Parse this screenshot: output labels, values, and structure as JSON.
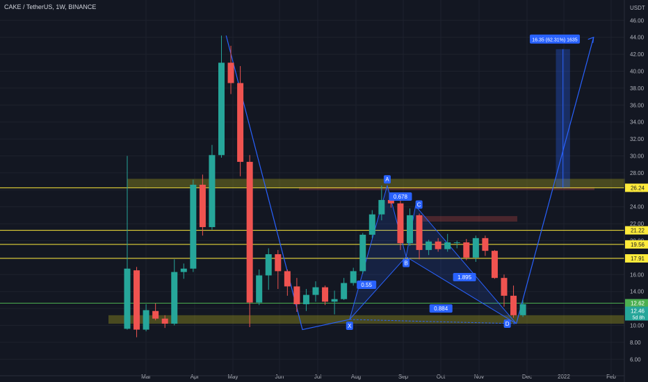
{
  "header": {
    "symbol": "CAKE / TetherUS",
    "interval": "1W",
    "exchange": "BINANCE",
    "currency": "USDT"
  },
  "colors": {
    "background": "#131722",
    "grid": "#1e222d",
    "up": "#26a69a",
    "down": "#ef5350",
    "pattern": "#2962ff",
    "level_line": "#ffeb3b",
    "support_line": "#4caf50",
    "zone": "#8b8a1f"
  },
  "chart_data": {
    "type": "candlestick",
    "title": "CAKE / TetherUS, 1W, BINANCE",
    "ylabel": "USDT",
    "ylim": [
      5,
      48
    ],
    "x_tick_labels": [
      "Mar",
      "Apr",
      "May",
      "Jun",
      "Jul",
      "Aug",
      "Sep",
      "Oct",
      "Nov",
      "Dec",
      "2022",
      "Feb"
    ],
    "y_tick_labels": [
      "6.00",
      "8.00",
      "10.00",
      "12.00",
      "14.00",
      "16.00",
      "18.00",
      "20.00",
      "22.00",
      "24.00",
      "26.00",
      "28.00",
      "30.00",
      "32.00",
      "34.00",
      "36.00",
      "38.00",
      "40.00",
      "42.00",
      "44.00",
      "46.00"
    ],
    "candles": [
      {
        "o": 9.6,
        "h": 30.0,
        "l": 9.5,
        "c": 16.7
      },
      {
        "o": 16.5,
        "h": 16.9,
        "l": 8.6,
        "c": 9.5
      },
      {
        "o": 9.5,
        "h": 12.5,
        "l": 9.3,
        "c": 11.8
      },
      {
        "o": 11.7,
        "h": 12.6,
        "l": 10.6,
        "c": 10.8
      },
      {
        "o": 10.8,
        "h": 11.2,
        "l": 9.7,
        "c": 10.2
      },
      {
        "o": 10.2,
        "h": 17.8,
        "l": 10.0,
        "c": 16.3
      },
      {
        "o": 16.3,
        "h": 17.3,
        "l": 15.5,
        "c": 16.7
      },
      {
        "o": 16.7,
        "h": 27.2,
        "l": 16.3,
        "c": 26.6
      },
      {
        "o": 26.6,
        "h": 27.8,
        "l": 20.6,
        "c": 21.6
      },
      {
        "o": 21.6,
        "h": 31.3,
        "l": 21.3,
        "c": 30.1
      },
      {
        "o": 30.1,
        "h": 44.2,
        "l": 29.8,
        "c": 41.0
      },
      {
        "o": 41.0,
        "h": 43.0,
        "l": 37.3,
        "c": 38.6
      },
      {
        "o": 38.6,
        "h": 40.6,
        "l": 27.6,
        "c": 29.3
      },
      {
        "o": 29.3,
        "h": 30.1,
        "l": 9.8,
        "c": 12.7
      },
      {
        "o": 12.7,
        "h": 16.6,
        "l": 12.4,
        "c": 15.9
      },
      {
        "o": 15.9,
        "h": 19.1,
        "l": 14.2,
        "c": 18.4
      },
      {
        "o": 18.4,
        "h": 18.9,
        "l": 14.3,
        "c": 16.4
      },
      {
        "o": 16.4,
        "h": 16.6,
        "l": 13.5,
        "c": 14.6
      },
      {
        "o": 14.6,
        "h": 15.6,
        "l": 11.6,
        "c": 12.5
      },
      {
        "o": 12.5,
        "h": 14.3,
        "l": 11.7,
        "c": 13.6
      },
      {
        "o": 13.6,
        "h": 15.2,
        "l": 12.8,
        "c": 14.5
      },
      {
        "o": 14.5,
        "h": 14.7,
        "l": 12.4,
        "c": 12.8
      },
      {
        "o": 12.8,
        "h": 14.1,
        "l": 11.3,
        "c": 13.1
      },
      {
        "o": 13.1,
        "h": 15.6,
        "l": 13.0,
        "c": 15.0
      },
      {
        "o": 15.0,
        "h": 16.8,
        "l": 14.7,
        "c": 16.4
      },
      {
        "o": 16.4,
        "h": 20.9,
        "l": 16.1,
        "c": 20.7
      },
      {
        "o": 20.7,
        "h": 23.6,
        "l": 20.3,
        "c": 23.1
      },
      {
        "o": 23.1,
        "h": 26.5,
        "l": 22.4,
        "c": 24.8
      },
      {
        "o": 24.8,
        "h": 25.1,
        "l": 23.9,
        "c": 24.4
      },
      {
        "o": 24.4,
        "h": 25.3,
        "l": 18.9,
        "c": 19.7
      },
      {
        "o": 19.7,
        "h": 23.8,
        "l": 19.4,
        "c": 23.0
      },
      {
        "o": 23.0,
        "h": 23.2,
        "l": 17.8,
        "c": 18.9
      },
      {
        "o": 18.9,
        "h": 20.1,
        "l": 18.3,
        "c": 19.9
      },
      {
        "o": 19.9,
        "h": 20.3,
        "l": 18.7,
        "c": 19.0
      },
      {
        "o": 19.0,
        "h": 20.8,
        "l": 18.7,
        "c": 19.8
      },
      {
        "o": 19.8,
        "h": 20.0,
        "l": 19.1,
        "c": 19.8
      },
      {
        "o": 19.8,
        "h": 20.2,
        "l": 17.7,
        "c": 18.0
      },
      {
        "o": 18.0,
        "h": 20.6,
        "l": 17.5,
        "c": 20.3
      },
      {
        "o": 20.3,
        "h": 20.6,
        "l": 18.2,
        "c": 18.8
      },
      {
        "o": 18.8,
        "h": 18.9,
        "l": 15.5,
        "c": 15.6
      },
      {
        "o": 15.6,
        "h": 16.0,
        "l": 12.2,
        "c": 13.5
      },
      {
        "o": 13.5,
        "h": 14.7,
        "l": 10.9,
        "c": 11.2
      },
      {
        "o": 11.2,
        "h": 13.0,
        "l": 11.0,
        "c": 12.5
      }
    ],
    "harmonic_pattern": {
      "points": [
        {
          "label": "X",
          "bar": 23.6,
          "price": 10.7
        },
        {
          "label": "A",
          "bar": 27.6,
          "price": 26.5
        },
        {
          "label": "B",
          "bar": 29.6,
          "price": 18.1
        },
        {
          "label": "C",
          "bar": 30.6,
          "price": 24.1
        },
        {
          "label": "D",
          "bar": 41.3,
          "price": 10.2
        }
      ],
      "ratios": [
        {
          "text": "0.678",
          "bar": 29.0,
          "price": 25.2
        },
        {
          "text": "0.55",
          "bar": 25.4,
          "price": 14.8
        },
        {
          "text": "1.895",
          "bar": 35.8,
          "price": 15.7
        },
        {
          "text": "0.884",
          "bar": 33.3,
          "price": 12.0
        }
      ],
      "drop_leg": [
        {
          "bar": 10.5,
          "price": 44.2
        },
        {
          "bar": 18.6,
          "price": 9.5
        },
        {
          "bar": 23.6,
          "price": 10.7
        }
      ],
      "projection": [
        {
          "bar": 41.3,
          "price": 10.2
        },
        {
          "bar": 49.5,
          "price": 44.0
        }
      ]
    },
    "measure": {
      "label": "16.35 (62.31%) 1635",
      "bar_from": 45.5,
      "bar_to": 47.0,
      "price_from": 26.24,
      "price_to": 42.6
    },
    "levels": [
      {
        "price": 26.24,
        "label": "26.24",
        "kind": "resistance"
      },
      {
        "price": 21.22,
        "label": "21.22",
        "kind": "resistance"
      },
      {
        "price": 19.56,
        "label": "19.56",
        "kind": "resistance"
      },
      {
        "price": 17.91,
        "label": "17.91",
        "kind": "resistance"
      },
      {
        "price": 12.62,
        "label": "12.62",
        "kind": "support"
      }
    ],
    "zones": [
      {
        "from": 26.3,
        "to": 27.3
      },
      {
        "from": 10.2,
        "to": 11.2
      }
    ],
    "current_price": {
      "price": 12.46,
      "label": "12.46",
      "countdown": "5d 8h"
    }
  }
}
